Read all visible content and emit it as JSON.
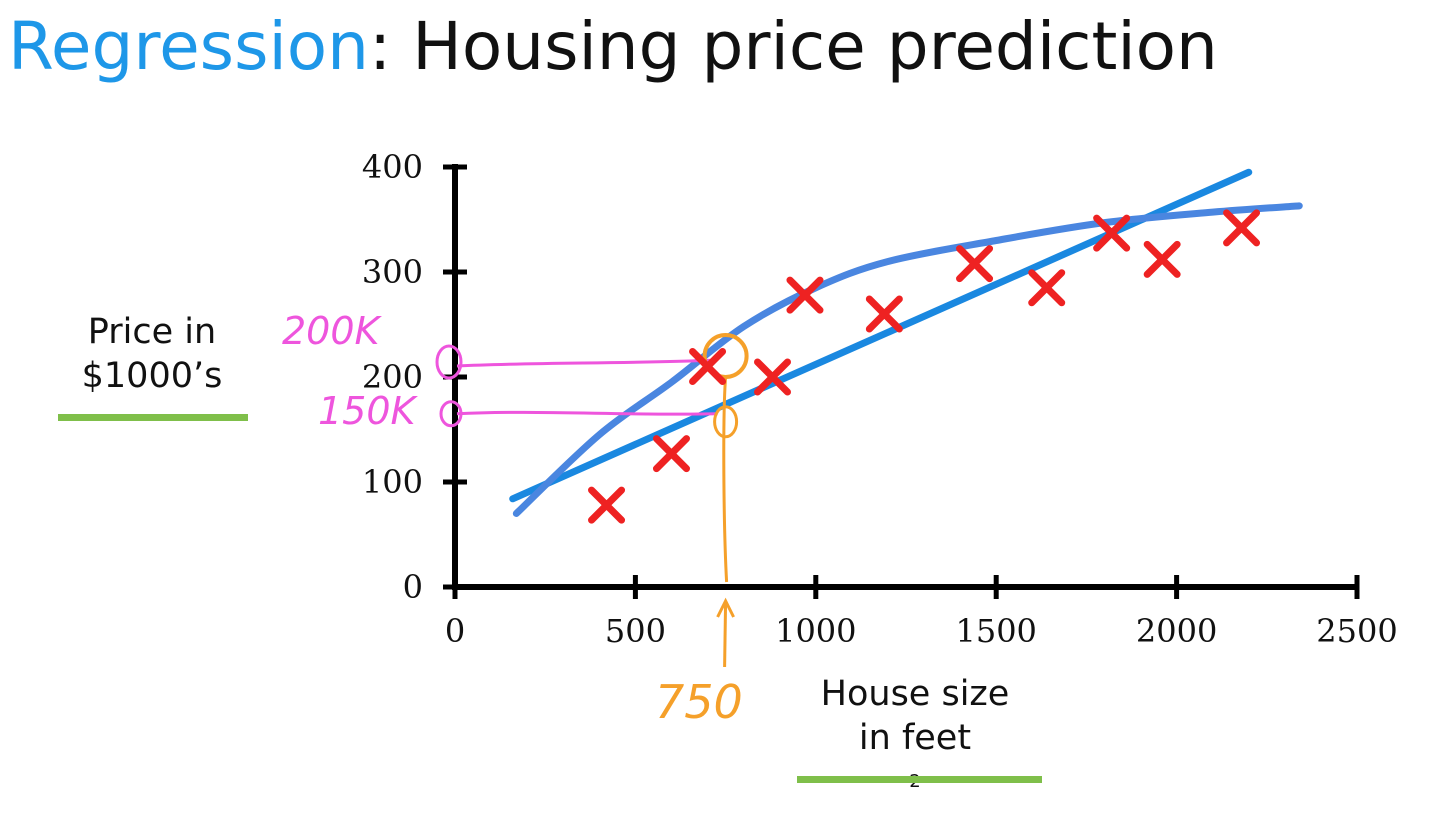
{
  "title": {
    "highlight": "Regression",
    "rest": ": Housing price prediction"
  },
  "y_axis_label": {
    "line1": "Price in",
    "line2": "$1000’s"
  },
  "x_axis_label": {
    "line1": "House size",
    "line2": "in feet",
    "sup": "2"
  },
  "annotations": {
    "label_200k": "200K",
    "label_150k": "150K",
    "label_750": "750"
  },
  "colors": {
    "title_accent": "#1e97e8",
    "points": "#ee2222",
    "straight_fit": "#1a88e0",
    "curve_fit": "#4a86e0",
    "magenta": "#ee55dd",
    "orange": "#f5a02a",
    "underline": "#7fbf4a"
  },
  "chart_data": {
    "type": "scatter",
    "title": "Regression: Housing price prediction",
    "xlabel": "House size in feet²",
    "ylabel": "Price in $1000’s",
    "xlim": [
      0,
      2500
    ],
    "ylim": [
      0,
      400
    ],
    "xticks": [
      0,
      500,
      1000,
      1500,
      2000,
      2500
    ],
    "yticks": [
      0,
      100,
      200,
      300,
      400
    ],
    "grid": false,
    "points": [
      {
        "x": 420,
        "y": 78
      },
      {
        "x": 600,
        "y": 127
      },
      {
        "x": 700,
        "y": 210
      },
      {
        "x": 880,
        "y": 200
      },
      {
        "x": 970,
        "y": 278
      },
      {
        "x": 1190,
        "y": 260
      },
      {
        "x": 1440,
        "y": 308
      },
      {
        "x": 1640,
        "y": 285
      },
      {
        "x": 1820,
        "y": 337
      },
      {
        "x": 1960,
        "y": 312
      },
      {
        "x": 2180,
        "y": 342
      }
    ],
    "straight_fit": [
      {
        "x": 160,
        "y": 84
      },
      {
        "x": 2200,
        "y": 395
      }
    ],
    "curve_fit": [
      {
        "x": 170,
        "y": 70
      },
      {
        "x": 400,
        "y": 145
      },
      {
        "x": 600,
        "y": 195
      },
      {
        "x": 800,
        "y": 248
      },
      {
        "x": 1000,
        "y": 285
      },
      {
        "x": 1200,
        "y": 310
      },
      {
        "x": 1500,
        "y": 330
      },
      {
        "x": 1800,
        "y": 347
      },
      {
        "x": 2100,
        "y": 357
      },
      {
        "x": 2340,
        "y": 363
      }
    ],
    "annotation_points": [
      {
        "x": 750,
        "y": 220
      },
      {
        "x": 750,
        "y": 165
      }
    ]
  }
}
